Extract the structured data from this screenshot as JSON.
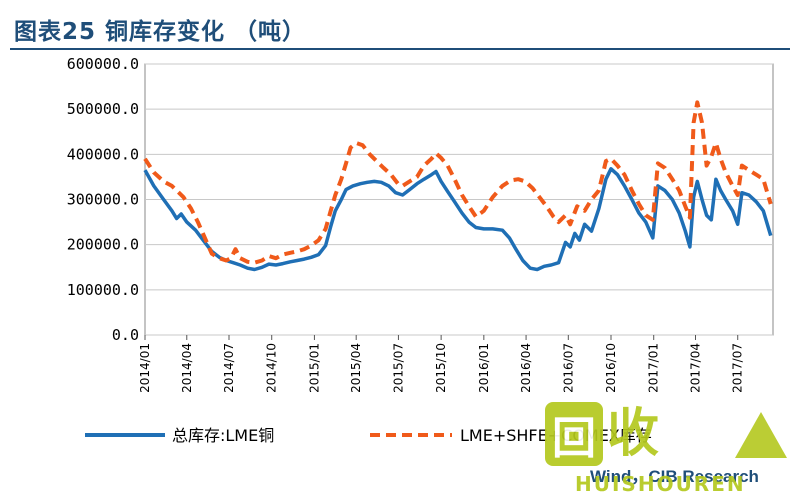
{
  "title": "图表25  铜库存变化 （吨）",
  "source": "Wind，CIB Research",
  "watermark": {
    "glyph": "回",
    "text": "收",
    "sub": "HUISHOUREN"
  },
  "colors": {
    "series1": "#1f6fb5",
    "series2": "#f05a1a",
    "title": "#1f4e79"
  },
  "chart_data": {
    "type": "line",
    "title": "图表25  铜库存变化 （吨）",
    "xlabel": "",
    "ylabel": "",
    "ylim": [
      0,
      600000
    ],
    "yticks": [
      "0.0",
      "100000.0",
      "200000.0",
      "300000.0",
      "400000.0",
      "500000.0",
      "600000.0"
    ],
    "xticks": [
      "2014/01",
      "2014/04",
      "2014/07",
      "2014/10",
      "2015/01",
      "2015/04",
      "2015/07",
      "2015/10",
      "2016/01",
      "2016/04",
      "2016/07",
      "2016/10",
      "2017/01",
      "2017/04",
      "2017/07"
    ],
    "x_range": [
      "2014/01",
      "2017/09"
    ],
    "grid": "horizontal",
    "legend_position": "bottom",
    "series": [
      {
        "name": "总库存:LME铜",
        "style": "solid",
        "points": [
          [
            "2014-01-01",
            365000
          ],
          [
            "2014-01-20",
            330000
          ],
          [
            "2014-02-10",
            300000
          ],
          [
            "2014-02-28",
            275000
          ],
          [
            "2014-03-10",
            258000
          ],
          [
            "2014-03-20",
            268000
          ],
          [
            "2014-04-01",
            250000
          ],
          [
            "2014-04-20",
            232000
          ],
          [
            "2014-05-10",
            205000
          ],
          [
            "2014-05-25",
            185000
          ],
          [
            "2014-06-10",
            172000
          ],
          [
            "2014-06-25",
            165000
          ],
          [
            "2014-07-10",
            160000
          ],
          [
            "2014-07-25",
            155000
          ],
          [
            "2014-08-10",
            148000
          ],
          [
            "2014-08-25",
            145000
          ],
          [
            "2014-09-10",
            150000
          ],
          [
            "2014-09-25",
            157000
          ],
          [
            "2014-10-10",
            155000
          ],
          [
            "2014-10-25",
            158000
          ],
          [
            "2014-11-10",
            162000
          ],
          [
            "2014-11-25",
            165000
          ],
          [
            "2014-12-10",
            168000
          ],
          [
            "2014-12-25",
            172000
          ],
          [
            "2015-01-10",
            178000
          ],
          [
            "2015-01-25",
            198000
          ],
          [
            "2015-02-05",
            240000
          ],
          [
            "2015-02-15",
            275000
          ],
          [
            "2015-02-28",
            300000
          ],
          [
            "2015-03-10",
            322000
          ],
          [
            "2015-03-25",
            330000
          ],
          [
            "2015-04-10",
            335000
          ],
          [
            "2015-04-25",
            338000
          ],
          [
            "2015-05-10",
            340000
          ],
          [
            "2015-05-25",
            338000
          ],
          [
            "2015-06-10",
            330000
          ],
          [
            "2015-06-25",
            315000
          ],
          [
            "2015-07-10",
            310000
          ],
          [
            "2015-07-25",
            322000
          ],
          [
            "2015-08-10",
            335000
          ],
          [
            "2015-08-25",
            345000
          ],
          [
            "2015-09-10",
            355000
          ],
          [
            "2015-09-20",
            362000
          ],
          [
            "2015-10-01",
            340000
          ],
          [
            "2015-10-15",
            318000
          ],
          [
            "2015-10-30",
            295000
          ],
          [
            "2015-11-15",
            270000
          ],
          [
            "2015-11-30",
            250000
          ],
          [
            "2015-12-15",
            238000
          ],
          [
            "2016-01-01",
            235000
          ],
          [
            "2016-01-20",
            235000
          ],
          [
            "2016-02-10",
            232000
          ],
          [
            "2016-02-25",
            215000
          ],
          [
            "2016-03-10",
            190000
          ],
          [
            "2016-03-25",
            165000
          ],
          [
            "2016-04-10",
            148000
          ],
          [
            "2016-04-25",
            145000
          ],
          [
            "2016-05-10",
            152000
          ],
          [
            "2016-05-25",
            155000
          ],
          [
            "2016-06-10",
            160000
          ],
          [
            "2016-06-25",
            205000
          ],
          [
            "2016-07-05",
            195000
          ],
          [
            "2016-07-15",
            225000
          ],
          [
            "2016-07-25",
            210000
          ],
          [
            "2016-08-05",
            245000
          ],
          [
            "2016-08-20",
            230000
          ],
          [
            "2016-09-05",
            280000
          ],
          [
            "2016-09-20",
            345000
          ],
          [
            "2016-10-01",
            368000
          ],
          [
            "2016-10-15",
            355000
          ],
          [
            "2016-10-30",
            330000
          ],
          [
            "2016-11-15",
            300000
          ],
          [
            "2016-11-30",
            270000
          ],
          [
            "2016-12-15",
            250000
          ],
          [
            "2016-12-30",
            215000
          ],
          [
            "2017-01-10",
            330000
          ],
          [
            "2017-01-25",
            320000
          ],
          [
            "2017-02-10",
            300000
          ],
          [
            "2017-02-25",
            270000
          ],
          [
            "2017-03-10",
            230000
          ],
          [
            "2017-03-20",
            195000
          ],
          [
            "2017-03-28",
            305000
          ],
          [
            "2017-04-05",
            340000
          ],
          [
            "2017-04-15",
            300000
          ],
          [
            "2017-04-25",
            265000
          ],
          [
            "2017-05-05",
            255000
          ],
          [
            "2017-05-15",
            345000
          ],
          [
            "2017-05-25",
            320000
          ],
          [
            "2017-06-05",
            300000
          ],
          [
            "2017-06-20",
            275000
          ],
          [
            "2017-07-01",
            245000
          ],
          [
            "2017-07-10",
            315000
          ],
          [
            "2017-07-25",
            310000
          ],
          [
            "2017-08-10",
            295000
          ],
          [
            "2017-08-25",
            275000
          ],
          [
            "2017-09-10",
            220000
          ]
        ]
      },
      {
        "name": "LME+SHFE+COMEX库存",
        "style": "dashed",
        "points": [
          [
            "2014-01-01",
            390000
          ],
          [
            "2014-01-20",
            360000
          ],
          [
            "2014-02-10",
            340000
          ],
          [
            "2014-02-28",
            330000
          ],
          [
            "2014-03-10",
            320000
          ],
          [
            "2014-03-25",
            305000
          ],
          [
            "2014-04-10",
            280000
          ],
          [
            "2014-04-25",
            250000
          ],
          [
            "2014-05-10",
            215000
          ],
          [
            "2014-05-25",
            180000
          ],
          [
            "2014-06-10",
            170000
          ],
          [
            "2014-06-25",
            165000
          ],
          [
            "2014-07-05",
            170000
          ],
          [
            "2014-07-15",
            190000
          ],
          [
            "2014-07-25",
            170000
          ],
          [
            "2014-08-10",
            162000
          ],
          [
            "2014-08-25",
            160000
          ],
          [
            "2014-09-10",
            165000
          ],
          [
            "2014-09-25",
            175000
          ],
          [
            "2014-10-10",
            170000
          ],
          [
            "2014-10-25",
            178000
          ],
          [
            "2014-11-10",
            182000
          ],
          [
            "2014-11-25",
            185000
          ],
          [
            "2014-12-10",
            190000
          ],
          [
            "2014-12-25",
            198000
          ],
          [
            "2015-01-10",
            210000
          ],
          [
            "2015-01-25",
            235000
          ],
          [
            "2015-02-05",
            275000
          ],
          [
            "2015-02-15",
            310000
          ],
          [
            "2015-02-28",
            345000
          ],
          [
            "2015-03-10",
            380000
          ],
          [
            "2015-03-20",
            415000
          ],
          [
            "2015-04-01",
            425000
          ],
          [
            "2015-04-15",
            420000
          ],
          [
            "2015-04-30",
            400000
          ],
          [
            "2015-05-15",
            385000
          ],
          [
            "2015-05-30",
            370000
          ],
          [
            "2015-06-15",
            355000
          ],
          [
            "2015-06-30",
            335000
          ],
          [
            "2015-07-10",
            330000
          ],
          [
            "2015-07-25",
            340000
          ],
          [
            "2015-08-10",
            350000
          ],
          [
            "2015-08-25",
            375000
          ],
          [
            "2015-09-10",
            390000
          ],
          [
            "2015-09-20",
            402000
          ],
          [
            "2015-10-01",
            392000
          ],
          [
            "2015-10-15",
            375000
          ],
          [
            "2015-10-30",
            345000
          ],
          [
            "2015-11-15",
            310000
          ],
          [
            "2015-11-30",
            285000
          ],
          [
            "2015-12-15",
            262000
          ],
          [
            "2016-01-01",
            275000
          ],
          [
            "2016-01-20",
            305000
          ],
          [
            "2016-02-10",
            330000
          ],
          [
            "2016-02-28",
            342000
          ],
          [
            "2016-03-15",
            345000
          ],
          [
            "2016-03-30",
            340000
          ],
          [
            "2016-04-15",
            325000
          ],
          [
            "2016-04-30",
            305000
          ],
          [
            "2016-05-15",
            285000
          ],
          [
            "2016-05-30",
            262000
          ],
          [
            "2016-06-10",
            250000
          ],
          [
            "2016-06-25",
            265000
          ],
          [
            "2016-07-05",
            245000
          ],
          [
            "2016-07-20",
            285000
          ],
          [
            "2016-08-05",
            275000
          ],
          [
            "2016-08-20",
            300000
          ],
          [
            "2016-09-05",
            320000
          ],
          [
            "2016-09-20",
            385000
          ],
          [
            "2016-10-01",
            390000
          ],
          [
            "2016-10-15",
            375000
          ],
          [
            "2016-10-30",
            355000
          ],
          [
            "2016-11-15",
            320000
          ],
          [
            "2016-11-30",
            290000
          ],
          [
            "2016-12-15",
            265000
          ],
          [
            "2016-12-30",
            255000
          ],
          [
            "2017-01-10",
            380000
          ],
          [
            "2017-01-25",
            370000
          ],
          [
            "2017-02-10",
            345000
          ],
          [
            "2017-02-25",
            320000
          ],
          [
            "2017-03-10",
            285000
          ],
          [
            "2017-03-20",
            260000
          ],
          [
            "2017-03-28",
            470000
          ],
          [
            "2017-04-05",
            515000
          ],
          [
            "2017-04-15",
            470000
          ],
          [
            "2017-04-25",
            375000
          ],
          [
            "2017-05-05",
            395000
          ],
          [
            "2017-05-15",
            425000
          ],
          [
            "2017-05-25",
            390000
          ],
          [
            "2017-06-05",
            360000
          ],
          [
            "2017-06-20",
            330000
          ],
          [
            "2017-07-01",
            310000
          ],
          [
            "2017-07-10",
            375000
          ],
          [
            "2017-07-25",
            365000
          ],
          [
            "2017-08-10",
            355000
          ],
          [
            "2017-08-25",
            345000
          ],
          [
            "2017-09-10",
            290000
          ]
        ]
      }
    ]
  }
}
